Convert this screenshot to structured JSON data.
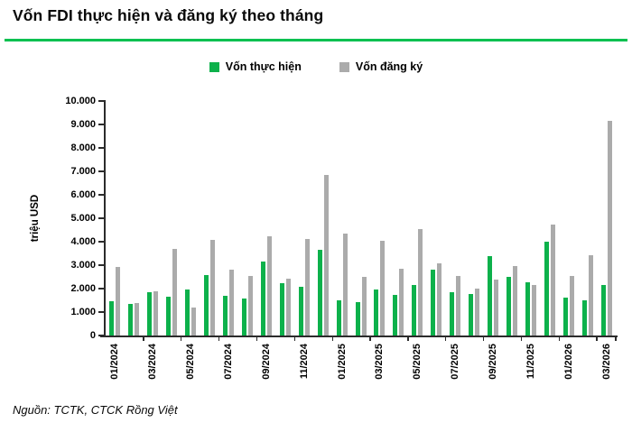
{
  "header": {
    "title": "Vốn FDI thực hiện và đăng ký theo tháng"
  },
  "footer": {
    "source": "Nguồn: TCTK, CTCK Rồng Việt"
  },
  "colors": {
    "accent_rule": "#00c050",
    "implemented_green": "#0db14b",
    "registered_gray": "#ababab",
    "axis": "#2b2b2b"
  },
  "chart_data": {
    "type": "bar",
    "title": "Vốn FDI thực hiện và đăng ký theo tháng",
    "xlabel": "",
    "ylabel": "triệu USD",
    "ylim": [
      0,
      10000
    ],
    "ytick_step": 1000,
    "ytick_labels": [
      "0",
      "1.000",
      "2.000",
      "3.000",
      "4.000",
      "5.000",
      "6.000",
      "7.000",
      "8.000",
      "9.000",
      "10.000"
    ],
    "grid": false,
    "legend_position": "top",
    "categories": [
      "01/2024",
      "02/2024",
      "03/2024",
      "04/2024",
      "05/2024",
      "06/2024",
      "07/2024",
      "08/2024",
      "09/2024",
      "10/2024",
      "11/2024",
      "12/2024",
      "01/2025",
      "02/2025",
      "03/2025",
      "04/2025",
      "05/2025",
      "06/2025",
      "07/2025",
      "08/2025",
      "09/2025",
      "10/2025",
      "11/2025",
      "12/2025",
      "01/2026",
      "02/2026",
      "03/2026"
    ],
    "xtick_every": 2,
    "xtick_labels": [
      "01/2024",
      "03/2024",
      "05/2024",
      "07/2024",
      "09/2024",
      "11/2024",
      "01/2025",
      "03/2025",
      "05/2025",
      "07/2025",
      "09/2025",
      "11/2025",
      "01/2026",
      "03/2026"
    ],
    "series": [
      {
        "name": "Vốn thực hiện",
        "color": "#0db14b",
        "values": [
          1480,
          1330,
          1840,
          1660,
          1960,
          2590,
          1700,
          1580,
          3170,
          2240,
          2090,
          3650,
          1510,
          1440,
          1970,
          1740,
          2150,
          2810,
          1850,
          1780,
          3390,
          2490,
          2270,
          3990,
          1630,
          1490,
          2170
        ]
      },
      {
        "name": "Vốn đăng ký",
        "color": "#ababab",
        "values": [
          2910,
          1370,
          1900,
          3690,
          1190,
          4090,
          2820,
          2520,
          4250,
          2440,
          4100,
          6850,
          4360,
          2510,
          4050,
          2830,
          4540,
          3070,
          2550,
          2010,
          2390,
          2960,
          2140,
          4730,
          2550,
          3420,
          9150
        ]
      }
    ]
  }
}
